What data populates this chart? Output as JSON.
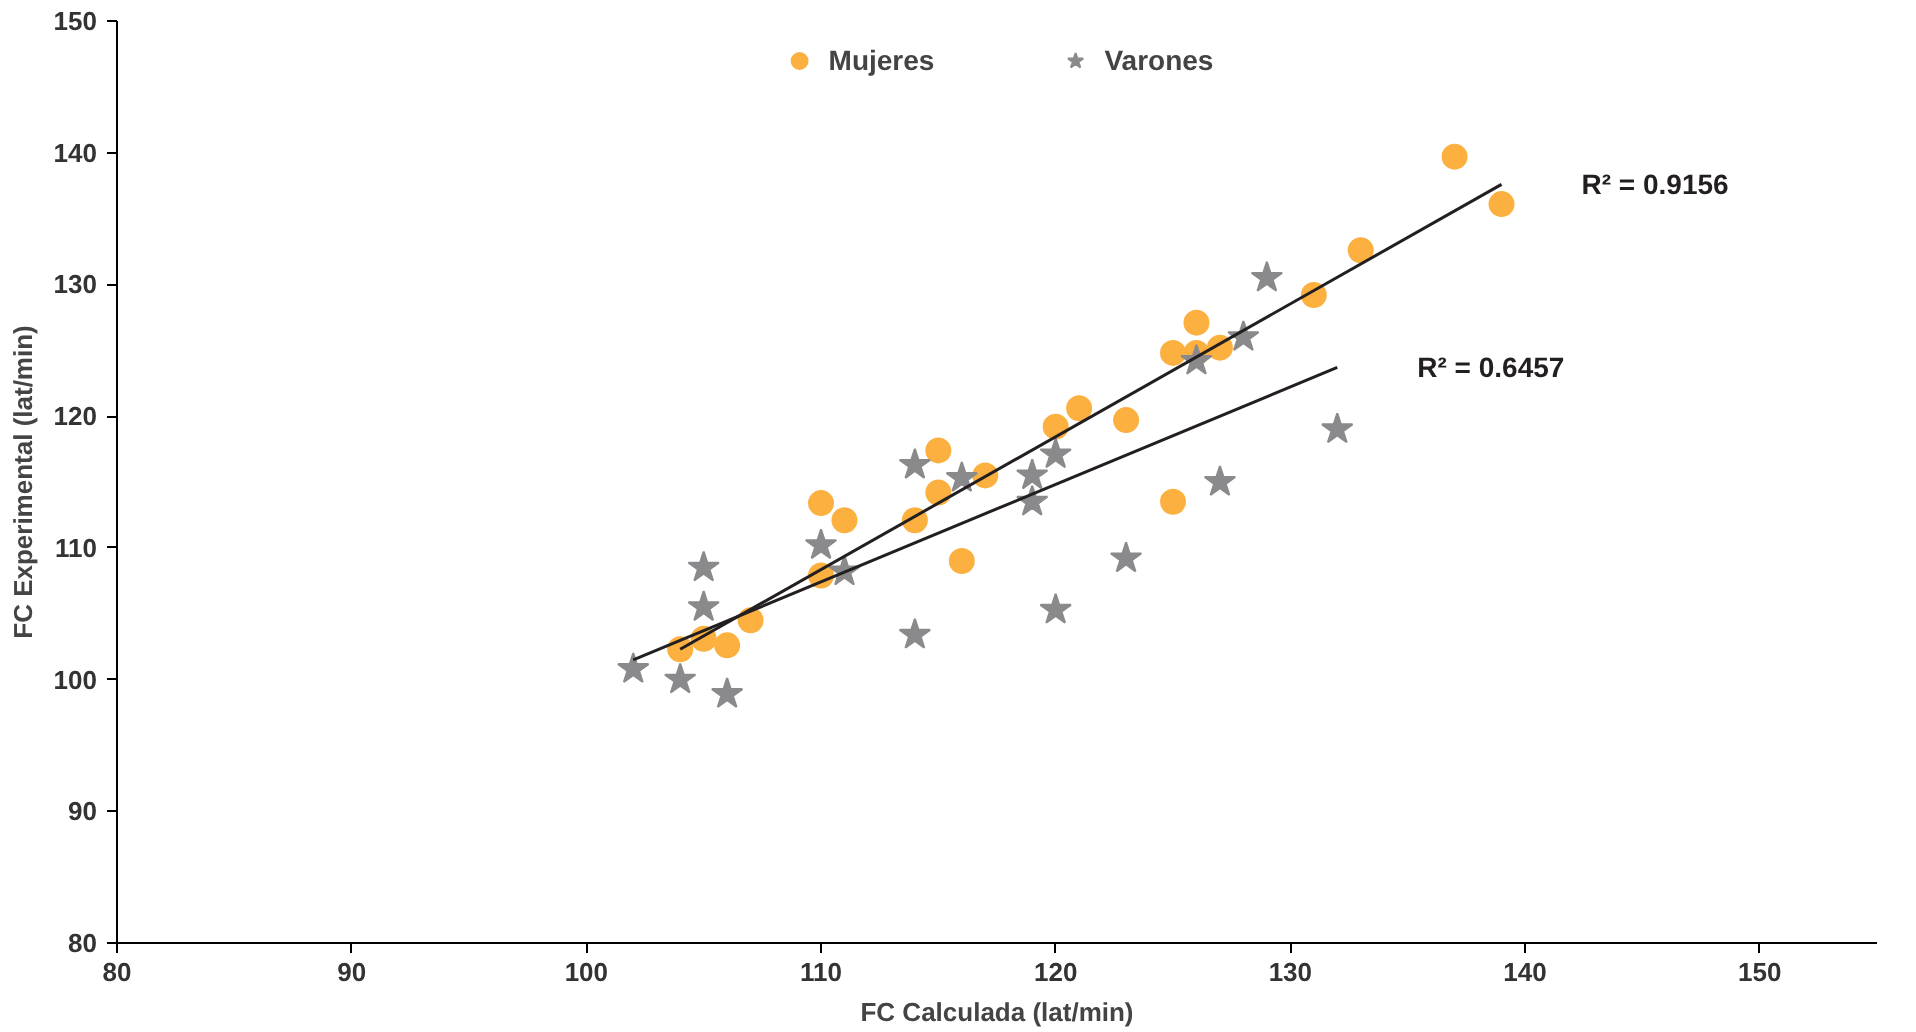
{
  "chart_data": {
    "type": "scatter",
    "xlabel": "FC Calculada (lat/min)",
    "ylabel": "FC Experimental (lat/min)",
    "xlim": [
      80,
      155
    ],
    "ylim": [
      80,
      150
    ],
    "xticks": [
      80,
      90,
      100,
      110,
      120,
      130,
      140,
      150
    ],
    "yticks": [
      80,
      90,
      100,
      110,
      120,
      130,
      140,
      150
    ],
    "grid": false,
    "legend": "top",
    "series": [
      {
        "name": "Mujeres",
        "color": "#fbb040",
        "marker": "circle",
        "x": [
          104,
          105,
          106,
          107,
          110,
          110,
          111,
          114,
          115,
          115,
          116,
          117,
          120,
          121,
          123,
          125,
          125,
          126,
          126,
          127,
          131,
          133,
          137,
          139
        ],
        "values": [
          102.3,
          103.1,
          102.6,
          104.5,
          113.4,
          107.9,
          112.1,
          112.1,
          117.4,
          114.2,
          109,
          115.5,
          119.2,
          120.6,
          119.7,
          113.5,
          124.8,
          127.1,
          124.8,
          125.2,
          129.2,
          132.6,
          139.7,
          136.1
        ]
      },
      {
        "name": "Varones",
        "color": "#8a8a8c",
        "marker": "star",
        "x": [
          102,
          104,
          105,
          105,
          106,
          110,
          111,
          114,
          114,
          116,
          119,
          119,
          120,
          120,
          123,
          126,
          127,
          128,
          129,
          132
        ],
        "values": [
          100.8,
          100,
          108.5,
          105.5,
          98.9,
          110.2,
          108.2,
          116.3,
          103.4,
          115.3,
          113.5,
          115.5,
          117.1,
          105.3,
          109.2,
          124.2,
          115,
          126,
          130.5,
          119
        ]
      },
      {
        "type": "line",
        "color": "#231f20",
        "marker": "none",
        "x": [
          104,
          139
        ],
        "values": [
          102.3,
          137.6
        ]
      },
      {
        "type": "line",
        "color": "#231f20",
        "marker": "none",
        "x": [
          102,
          132
        ],
        "values": [
          101.5,
          123.7
        ]
      }
    ],
    "annotations": [
      "R² = 0.9156",
      "R² = 0.6457"
    ]
  }
}
